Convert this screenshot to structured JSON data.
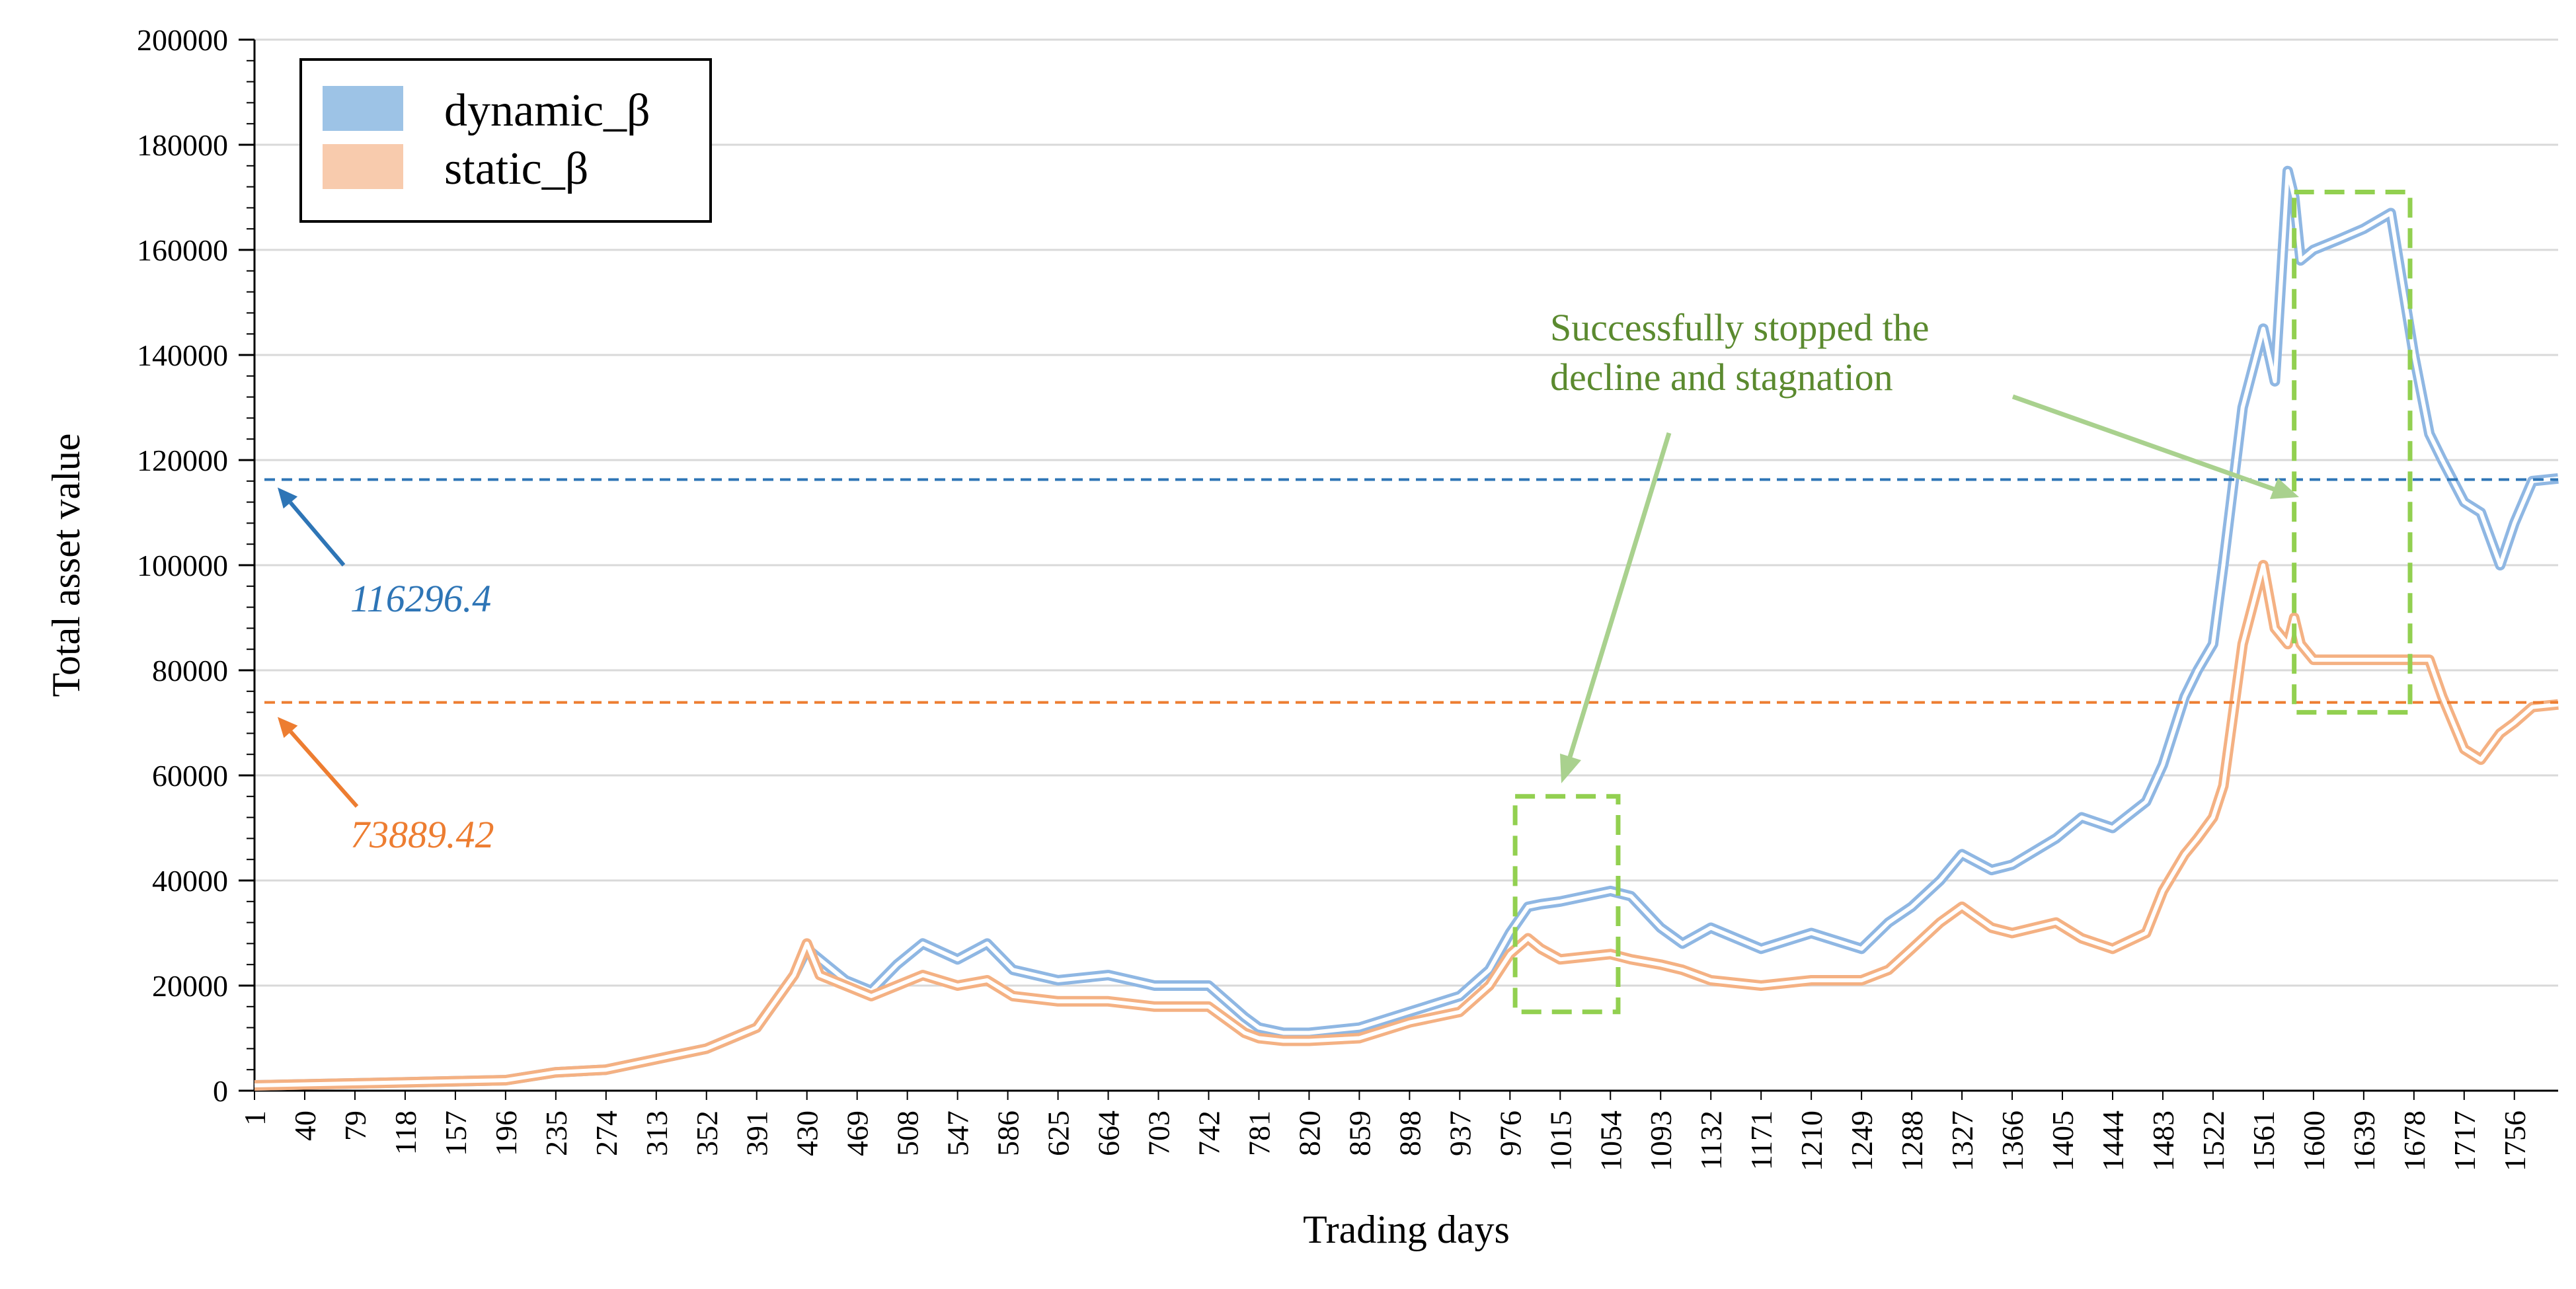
{
  "chart_data": {
    "type": "line",
    "xlabel": "Trading days",
    "ylabel": "Total asset value",
    "xlim": [
      1,
      1790
    ],
    "ylim": [
      0,
      200000
    ],
    "x_ticks": [
      "1",
      "40",
      "79",
      "118",
      "157",
      "196",
      "235",
      "274",
      "313",
      "352",
      "391",
      "430",
      "469",
      "508",
      "547",
      "586",
      "625",
      "664",
      "703",
      "742",
      "781",
      "820",
      "859",
      "898",
      "937",
      "976",
      "1015",
      "1054",
      "1093",
      "1132",
      "1171",
      "1210",
      "1249",
      "1288",
      "1327",
      "1366",
      "1405",
      "1444",
      "1483",
      "1522",
      "1561",
      "1600",
      "1639",
      "1678",
      "1717",
      "1756"
    ],
    "y_ticks": [
      0,
      20000,
      40000,
      60000,
      80000,
      100000,
      120000,
      140000,
      160000,
      180000,
      200000
    ],
    "y_tick_labels": [
      "0",
      "20000",
      "40000",
      "60000",
      "80000",
      "100000",
      "120000",
      "140000",
      "160000",
      "180000",
      "200000"
    ],
    "grid": "horizontal",
    "legend": {
      "position": "top-left",
      "entries": [
        "dynamic_β",
        "static_β"
      ]
    },
    "series": [
      {
        "name": "dynamic_β",
        "color": "#9dc3e6",
        "x": [
          1,
          100,
          196,
          235,
          274,
          313,
          352,
          391,
          420,
          430,
          440,
          460,
          480,
          500,
          520,
          547,
          570,
          590,
          625,
          664,
          700,
          742,
          770,
          781,
          800,
          820,
          859,
          898,
          937,
          960,
          976,
          990,
          1000,
          1015,
          1054,
          1070,
          1093,
          1110,
          1132,
          1171,
          1210,
          1249,
          1270,
          1288,
          1310,
          1327,
          1350,
          1366,
          1400,
          1420,
          1444,
          1470,
          1483,
          1500,
          1510,
          1522,
          1530,
          1545,
          1561,
          1570,
          1580,
          1585,
          1590,
          1600,
          1620,
          1639,
          1660,
          1678,
          1690,
          1700,
          1717,
          1730,
          1745,
          1756,
          1770,
          1790
        ],
        "y": [
          1000,
          1500,
          2000,
          3500,
          4000,
          6000,
          8000,
          12000,
          22000,
          27000,
          25000,
          21000,
          19000,
          24000,
          28000,
          25000,
          28000,
          23000,
          21000,
          22000,
          20000,
          20000,
          14000,
          12000,
          11000,
          11000,
          12000,
          15000,
          18000,
          23000,
          30000,
          35000,
          35500,
          36000,
          38000,
          37000,
          31000,
          28000,
          31000,
          27000,
          30000,
          27000,
          32000,
          35000,
          40000,
          45000,
          42000,
          43000,
          48000,
          52000,
          50000,
          55000,
          62000,
          75000,
          80000,
          85000,
          100000,
          130000,
          145000,
          135000,
          175000,
          170000,
          158000,
          160000,
          162000,
          164000,
          167000,
          140000,
          125000,
          120000,
          112000,
          110000,
          100000,
          108000,
          116000,
          116500
        ],
        "reference_value": 116296.4,
        "reference_label": "116296.4"
      },
      {
        "name": "static_β",
        "color": "#f8cbad",
        "x": [
          1,
          100,
          196,
          235,
          274,
          313,
          352,
          391,
          420,
          430,
          440,
          460,
          480,
          500,
          520,
          547,
          570,
          590,
          625,
          664,
          700,
          742,
          770,
          781,
          800,
          820,
          859,
          898,
          937,
          960,
          976,
          990,
          1000,
          1015,
          1054,
          1070,
          1093,
          1110,
          1132,
          1171,
          1210,
          1249,
          1270,
          1288,
          1310,
          1327,
          1350,
          1366,
          1400,
          1420,
          1444,
          1470,
          1483,
          1500,
          1510,
          1522,
          1530,
          1545,
          1561,
          1570,
          1580,
          1585,
          1590,
          1600,
          1620,
          1639,
          1660,
          1678,
          1690,
          1700,
          1717,
          1730,
          1745,
          1756,
          1770,
          1790
        ],
        "y": [
          1000,
          1500,
          2000,
          3500,
          4000,
          6000,
          8000,
          12000,
          22000,
          28000,
          22000,
          20000,
          18000,
          20000,
          22000,
          20000,
          21000,
          18000,
          17000,
          17000,
          16000,
          16000,
          11000,
          10000,
          9500,
          9500,
          10000,
          13000,
          15000,
          20000,
          26000,
          29000,
          27000,
          25000,
          26000,
          25000,
          24000,
          23000,
          21000,
          20000,
          21000,
          21000,
          23000,
          27000,
          32000,
          35000,
          31000,
          30000,
          32000,
          29000,
          27000,
          30000,
          38000,
          45000,
          48000,
          52000,
          58000,
          85000,
          100000,
          88000,
          85000,
          90000,
          85000,
          82000,
          82000,
          82000,
          82000,
          82000,
          82000,
          75000,
          65000,
          63000,
          68000,
          70000,
          73000,
          73500
        ],
        "reference_value": 73889.42,
        "reference_label": "73889.42"
      }
    ],
    "annotations": [
      {
        "text_lines": [
          "Successfully stopped the",
          "decline and stagnation"
        ],
        "color": "#70ad47"
      }
    ],
    "highlight_boxes": [
      {
        "x_range": [
          980,
          1060
        ],
        "y_range": [
          15000,
          56000
        ]
      },
      {
        "x_range": [
          1585,
          1675
        ],
        "y_range": [
          72000,
          171000
        ]
      }
    ]
  }
}
